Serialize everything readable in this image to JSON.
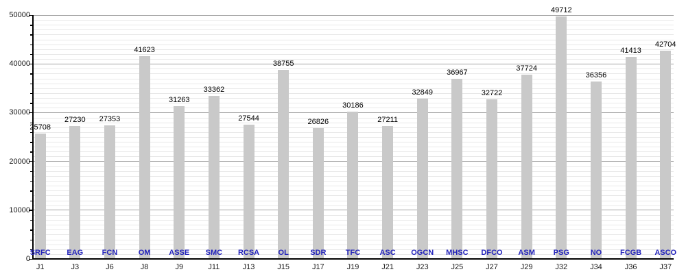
{
  "chart_data": {
    "type": "bar",
    "title": "",
    "xlabel": "",
    "ylabel": "",
    "categories": [
      "J1",
      "J3",
      "J6",
      "J8",
      "J9",
      "J11",
      "J13",
      "J15",
      "J17",
      "J19",
      "J21",
      "J23",
      "J25",
      "J27",
      "J29",
      "J32",
      "J34",
      "J36",
      "J37"
    ],
    "bar_labels": [
      "SRFC",
      "EAG",
      "FCN",
      "OM",
      "ASSE",
      "SMC",
      "RCSA",
      "OL",
      "SDR",
      "TFC",
      "ASC",
      "OGCN",
      "MHSC",
      "DFCO",
      "ASM",
      "PSG",
      "NO",
      "FCGB",
      "ASCO"
    ],
    "values": [
      25708,
      27230,
      27353,
      41623,
      31263,
      33362,
      27544,
      38755,
      26826,
      30186,
      27211,
      32849,
      36967,
      32722,
      37724,
      49712,
      36356,
      41413,
      42704
    ],
    "ylim": [
      0,
      50000
    ],
    "ytick_step": 10000,
    "minor_grid_step": 1000,
    "minor_tick_step": 2000,
    "yticks": [
      "0",
      "10000",
      "20000",
      "30000",
      "40000",
      "50000"
    ],
    "grid": true,
    "legend": "none",
    "colors": {
      "bar_fill": "#c9c9c9",
      "major_grid": "#a0a0a0",
      "minor_grid": "#e8e8e8",
      "axis": "#000000",
      "value_label": "#000000",
      "bar_name_label": "#2222bb",
      "tick_label": "#111111"
    }
  }
}
